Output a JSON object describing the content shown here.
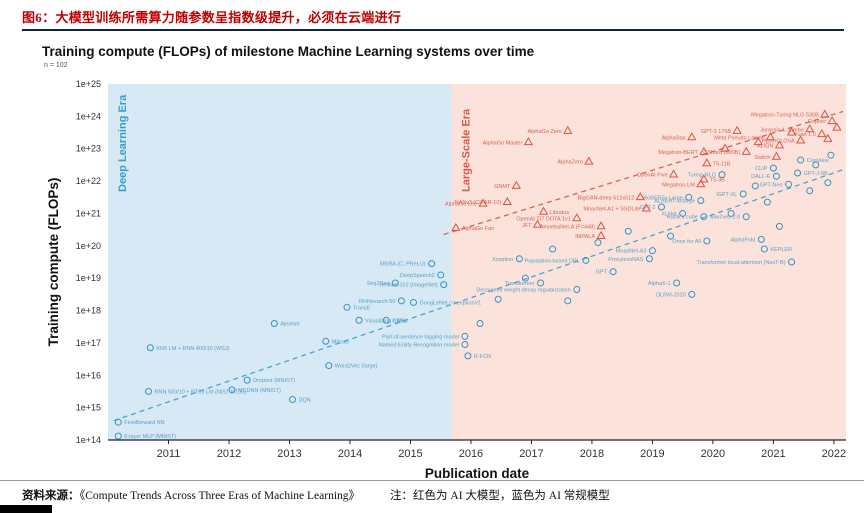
{
  "header": {
    "title": "图6：大模型训练所需算力随参数呈指数级提升，必须在云端进行"
  },
  "footer": {
    "source_label": "资料来源：",
    "source": "《Compute Trends Across Three Eras of Machine Learning》",
    "note": "注：红色为 AI 大模型，蓝色为 AI 常规模型"
  },
  "chart_data": {
    "type": "scatter",
    "title": "Training compute (FLOPs) of milestone Machine Learning systems over time",
    "n_label": "n = 102",
    "xlabel": "Publication date",
    "ylabel": "Training compute (FLOPs)",
    "x_range": [
      2010.0,
      2022.2
    ],
    "y_exp_range": [
      14,
      25
    ],
    "x_ticks": [
      2011,
      2012,
      2013,
      2014,
      2015,
      2016,
      2017,
      2018,
      2019,
      2020,
      2021,
      2022
    ],
    "y_ticks": [
      {
        "e": 25,
        "label": "1e+25"
      },
      {
        "e": 24,
        "label": "1e+24"
      },
      {
        "e": 23,
        "label": "1e+23"
      },
      {
        "e": 22,
        "label": "1e+22"
      },
      {
        "e": 21,
        "label": "1e+21"
      },
      {
        "e": 20,
        "label": "1e+20"
      },
      {
        "e": 19,
        "label": "1e+19"
      },
      {
        "e": 18,
        "label": "1e+18"
      },
      {
        "e": 17,
        "label": "1e+17"
      },
      {
        "e": 16,
        "label": "1e+16"
      },
      {
        "e": 15,
        "label": "1e+15"
      },
      {
        "e": 14,
        "label": "1e+14"
      }
    ],
    "eras": [
      {
        "id": "deep-learning",
        "name": "Deep Learning Era",
        "start": 2010.0,
        "end": 2015.68,
        "bg": "#d6e9f5",
        "label_color": "#36a0cc"
      },
      {
        "id": "large-scale",
        "name": "Large-Scale Era",
        "start": 2015.68,
        "end": 2022.2,
        "bg": "#fbe3dc",
        "label_color": "#e0564a"
      }
    ],
    "trend_lines": [
      {
        "name": "deep-learning-trend-line",
        "color": "#4aa5cf",
        "x1": 2010.1,
        "e1": 14.6,
        "x2": 2022.15,
        "e2": 22.35
      },
      {
        "name": "large-scale-trend-line",
        "color": "#e0604c",
        "x1": 2015.55,
        "e1": 20.35,
        "x2": 2022.15,
        "e2": 24.15
      }
    ],
    "series": [
      {
        "name": "AI 常规模型",
        "marker": "circle",
        "color": "#3492c4",
        "label_color": "#5b9fc2",
        "points": [
          {
            "l": "Feedforward NN",
            "x": 2010.17,
            "e": 14.55,
            "s": "r"
          },
          {
            "l": "6-layer MLP (MNIST)",
            "x": 2010.17,
            "e": 14.12,
            "s": "r"
          },
          {
            "l": "RNN 500/10 + RT09 LM (NIST RT05)",
            "x": 2010.67,
            "e": 15.5,
            "s": "r"
          },
          {
            "l": "KN5 LM + RNN 400/10 (WSJ)",
            "x": 2010.7,
            "e": 16.85,
            "s": "r"
          },
          {
            "l": "MCDNN (MNIST)",
            "x": 2012.05,
            "e": 15.55,
            "s": "r"
          },
          {
            "l": "Dropout (MNIST)",
            "x": 2012.3,
            "e": 15.85,
            "s": "r"
          },
          {
            "l": "DQN",
            "x": 2013.05,
            "e": 15.25,
            "s": "r"
          },
          {
            "l": "AlexNet",
            "x": 2012.75,
            "e": 17.6,
            "s": "r"
          },
          {
            "l": "Word2Vec (large)",
            "x": 2013.65,
            "e": 16.3,
            "s": "r"
          },
          {
            "l": "Mitosis",
            "x": 2013.6,
            "e": 17.05,
            "s": "r"
          },
          {
            "l": "TransE",
            "x": 2013.95,
            "e": 18.1,
            "s": "r"
          },
          {
            "l": "Visualizing CNNs",
            "x": 2014.15,
            "e": 17.7,
            "s": "r"
          },
          {
            "l": "GANs",
            "x": 2014.6,
            "e": 17.7,
            "s": "r"
          },
          {
            "l": "RNNsearch-50",
            "x": 2014.85,
            "e": 18.3,
            "s": "l"
          },
          {
            "l": "GoogLeNet / InceptionV1",
            "x": 2015.05,
            "e": 18.25,
            "s": "r"
          },
          {
            "l": "Seq2Seq",
            "x": 2014.75,
            "e": 18.85,
            "s": "l"
          },
          {
            "l": "MSRA (C, PReLU)",
            "x": 2015.35,
            "e": 19.45,
            "s": "l"
          },
          {
            "l": "DeepSpeech2",
            "x": 2015.5,
            "e": 19.1,
            "s": "l"
          },
          {
            "l": "ResNet-152 (ImageNet)",
            "x": 2015.55,
            "e": 18.8,
            "s": "l"
          },
          {
            "l": "Part-of-sentence tagging model",
            "x": 2015.9,
            "e": 17.2,
            "s": "l"
          },
          {
            "l": "Named Entity Recognition model",
            "x": 2015.9,
            "e": 16.95,
            "s": "l"
          },
          {
            "l": "R-FCN",
            "x": 2015.95,
            "e": 16.6,
            "s": "r"
          },
          {
            "l": "Xception",
            "x": 2016.8,
            "e": 19.6,
            "s": "l"
          },
          {
            "l": "Transformer",
            "x": 2017.15,
            "e": 18.85,
            "s": "l"
          },
          {
            "l": "Population-based DRL",
            "x": 2017.9,
            "e": 19.55,
            "s": "l"
          },
          {
            "l": "GPT",
            "x": 2018.35,
            "e": 19.2,
            "s": "l"
          },
          {
            "l": "Decoupled weight decay regularization",
            "x": 2017.75,
            "e": 18.65,
            "s": "l"
          },
          {
            "l": "DLRM-2020",
            "x": 2019.65,
            "e": 18.5,
            "s": "l"
          },
          {
            "l": "AlphaX-1",
            "x": 2019.4,
            "e": 18.85,
            "s": "l"
          },
          {
            "l": "ProxylessNAS",
            "x": 2018.95,
            "e": 19.6,
            "s": "l"
          },
          {
            "l": "MnasNet-A3",
            "x": 2019.0,
            "e": 19.85,
            "s": "l"
          },
          {
            "l": "Rubik's cube",
            "x": 2019.85,
            "e": 20.9,
            "s": "l"
          },
          {
            "l": "Once for All",
            "x": 2019.9,
            "e": 20.15,
            "s": "l"
          },
          {
            "l": "AlphaFold",
            "x": 2020.8,
            "e": 20.2,
            "s": "l"
          },
          {
            "l": "KEPLER",
            "x": 2020.85,
            "e": 19.9,
            "s": "r"
          },
          {
            "l": "Transformer local-attention (NesT-B)",
            "x": 2021.3,
            "e": 19.5,
            "s": "l"
          },
          {
            "l": "GPT-2",
            "x": 2019.15,
            "e": 21.2,
            "s": "l"
          },
          {
            "l": "RoBERTa Large",
            "x": 2019.6,
            "e": 21.5,
            "s": "l"
          },
          {
            "l": "ALBERT-xxlarge",
            "x": 2019.8,
            "e": 21.4,
            "s": "l"
          },
          {
            "l": "XLNet",
            "x": 2019.5,
            "e": 21.0,
            "s": "l"
          },
          {
            "l": "Turing-NLG",
            "x": 2020.15,
            "e": 22.2,
            "s": "l"
          },
          {
            "l": "iGPT-XL",
            "x": 2020.5,
            "e": 21.6,
            "s": "l"
          },
          {
            "l": "wav2vec 2.0",
            "x": 2020.55,
            "e": 20.9,
            "s": "l"
          },
          {
            "l": "CLIP",
            "x": 2021.0,
            "e": 22.4,
            "s": "l"
          },
          {
            "l": "DALL-E",
            "x": 2021.05,
            "e": 22.15,
            "s": "l"
          },
          {
            "l": "GPT-Neo",
            "x": 2021.25,
            "e": 21.9,
            "s": "l"
          },
          {
            "l": "GPT-J-6B",
            "x": 2021.4,
            "e": 22.25,
            "s": "r"
          },
          {
            "l": "CogView",
            "x": 2021.45,
            "e": 22.65,
            "s": "r"
          },
          {
            "l": "",
            "x": 2016.15,
            "e": 17.6,
            "s": "r"
          },
          {
            "l": "",
            "x": 2016.45,
            "e": 18.35,
            "s": "r"
          },
          {
            "l": "",
            "x": 2016.9,
            "e": 19.0,
            "s": "r"
          },
          {
            "l": "",
            "x": 2017.35,
            "e": 19.9,
            "s": "r"
          },
          {
            "l": "",
            "x": 2017.6,
            "e": 18.3,
            "s": "r"
          },
          {
            "l": "",
            "x": 2018.1,
            "e": 20.1,
            "s": "r"
          },
          {
            "l": "",
            "x": 2018.6,
            "e": 20.45,
            "s": "r"
          },
          {
            "l": "",
            "x": 2019.3,
            "e": 20.3,
            "s": "r"
          },
          {
            "l": "",
            "x": 2020.3,
            "e": 21.0,
            "s": "r"
          },
          {
            "l": "",
            "x": 2020.7,
            "e": 21.85,
            "s": "r"
          },
          {
            "l": "",
            "x": 2020.9,
            "e": 21.35,
            "s": "r"
          },
          {
            "l": "",
            "x": 2021.1,
            "e": 20.6,
            "s": "r"
          },
          {
            "l": "",
            "x": 2021.6,
            "e": 21.7,
            "s": "r"
          },
          {
            "l": "",
            "x": 2021.7,
            "e": 22.5,
            "s": "r"
          },
          {
            "l": "",
            "x": 2021.9,
            "e": 21.95,
            "s": "r"
          },
          {
            "l": "",
            "x": 2021.95,
            "e": 22.8,
            "s": "r"
          }
        ]
      },
      {
        "name": "AI 大模型",
        "marker": "triangle",
        "color": "#e0513f",
        "label_color": "#d96152",
        "points": [
          {
            "l": "AlphaGo Fan",
            "x": 2015.75,
            "e": 20.55,
            "s": "r"
          },
          {
            "l": "AlphaGo Lee",
            "x": 2016.2,
            "e": 21.3,
            "s": "l"
          },
          {
            "l": "NASv3 (CIFAR-10)",
            "x": 2016.6,
            "e": 21.35,
            "s": "l"
          },
          {
            "l": "GNMT",
            "x": 2016.75,
            "e": 21.85,
            "s": "l"
          },
          {
            "l": "Libratus",
            "x": 2017.2,
            "e": 21.05,
            "s": "r"
          },
          {
            "l": "JFT",
            "x": 2017.1,
            "e": 20.65,
            "s": "l"
          },
          {
            "l": "OpenAI TI7 DOTA 1v1",
            "x": 2017.75,
            "e": 20.85,
            "s": "l"
          },
          {
            "l": "AlphaGo Master",
            "x": 2016.95,
            "e": 23.2,
            "s": "l"
          },
          {
            "l": "AlphaGo Zero",
            "x": 2017.6,
            "e": 23.55,
            "s": "l"
          },
          {
            "l": "AlphaZero",
            "x": 2017.95,
            "e": 22.6,
            "s": "l"
          },
          {
            "l": "AmoebaNet-A (F=448)",
            "x": 2018.15,
            "e": 20.6,
            "s": "l"
          },
          {
            "l": "IMPALA",
            "x": 2018.15,
            "e": 20.3,
            "s": "l"
          },
          {
            "l": "BigGAN-deep 512x512",
            "x": 2018.8,
            "e": 21.5,
            "s": "l"
          },
          {
            "l": "MnasNet-A1 + SSDLite",
            "x": 2018.9,
            "e": 21.15,
            "s": "l"
          },
          {
            "l": "OpenAI Five",
            "x": 2019.35,
            "e": 22.2,
            "s": "l"
          },
          {
            "l": "T5-3B",
            "x": 2019.85,
            "e": 22.05,
            "s": "r"
          },
          {
            "l": "T5-11B",
            "x": 2019.9,
            "e": 22.55,
            "s": "r"
          },
          {
            "l": "Megatron-LM",
            "x": 2019.8,
            "e": 21.9,
            "s": "l"
          },
          {
            "l": "Megatron-BERT",
            "x": 2019.85,
            "e": 22.9,
            "s": "l"
          },
          {
            "l": "AlphaStar",
            "x": 2019.65,
            "e": 23.35,
            "s": "l"
          },
          {
            "l": "GPT-3 175B",
            "x": 2020.4,
            "e": 23.55,
            "s": "l"
          },
          {
            "l": "GShard (600B)",
            "x": 2020.55,
            "e": 22.9,
            "s": "l"
          },
          {
            "l": "Switch",
            "x": 2021.05,
            "e": 22.75,
            "s": "l"
          },
          {
            "l": "Meta Pseudo Labels",
            "x": 2020.95,
            "e": 23.35,
            "s": "l"
          },
          {
            "l": "ALIGN",
            "x": 2021.1,
            "e": 23.1,
            "s": "l"
          },
          {
            "l": "HyperCLOVA",
            "x": 2021.45,
            "e": 23.25,
            "s": "l"
          },
          {
            "l": "Jurassic-1-Jumbo",
            "x": 2021.6,
            "e": 23.6,
            "s": "l"
          },
          {
            "l": "Yuan 1.0",
            "x": 2021.8,
            "e": 23.45,
            "s": "l"
          },
          {
            "l": "Megatron-Turing NLG 530B",
            "x": 2021.85,
            "e": 24.05,
            "s": "l"
          },
          {
            "l": "Gopher",
            "x": 2021.97,
            "e": 23.85,
            "s": "l"
          },
          {
            "l": "",
            "x": 2020.2,
            "e": 23.0,
            "s": "r"
          },
          {
            "l": "",
            "x": 2020.75,
            "e": 23.2,
            "s": "r"
          },
          {
            "l": "",
            "x": 2021.3,
            "e": 23.5,
            "s": "r"
          },
          {
            "l": "",
            "x": 2021.9,
            "e": 23.3,
            "s": "r"
          },
          {
            "l": "",
            "x": 2022.05,
            "e": 23.65,
            "s": "r"
          }
        ]
      }
    ]
  }
}
